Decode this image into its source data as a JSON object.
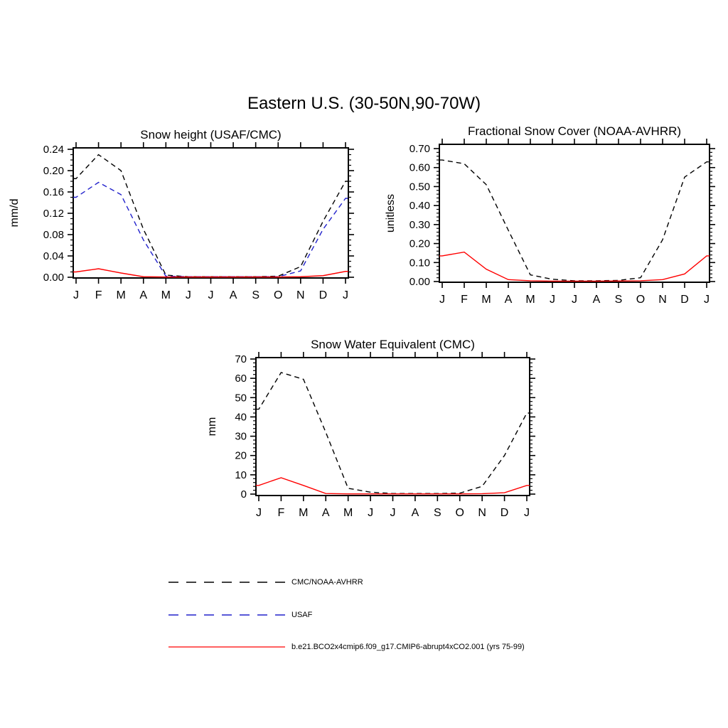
{
  "page": {
    "title": "Eastern U.S. (30-50N,90-70W)"
  },
  "colors": {
    "obs_black": "#000000",
    "usaf_blue": "#2222cc",
    "model_red": "#ff0000"
  },
  "chart_data": [
    {
      "type": "line",
      "title": "Snow height (USAF/CMC)",
      "ylabel": "mm/d",
      "x_labels": [
        "J",
        "F",
        "M",
        "A",
        "M",
        "J",
        "J",
        "A",
        "S",
        "O",
        "N",
        "D",
        "J"
      ],
      "ylim": [
        0,
        0.24
      ],
      "ytick_step": 0.04,
      "yminor_step": 0.01,
      "ytick_decimals": 2,
      "grid": false,
      "series": [
        {
          "name": "CMC/NOAA-AVHRR",
          "color": "#000000",
          "dash": "7,5",
          "values": [
            0.185,
            0.23,
            0.2,
            0.09,
            0.004,
            0.001,
            0.001,
            0.001,
            0.001,
            0.002,
            0.02,
            0.105,
            0.18
          ]
        },
        {
          "name": "USAF",
          "color": "#2222cc",
          "dash": "7,5",
          "values": [
            0.15,
            0.178,
            0.155,
            0.07,
            0.002,
            0.001,
            0.001,
            0.001,
            0.001,
            0.001,
            0.012,
            0.09,
            0.148
          ]
        },
        {
          "name": "b.e21.BCO2x4cmip6.f09_g17.CMIP6-abrupt4xCO2.001 (yrs 75-99)",
          "color": "#ff0000",
          "dash": "",
          "values": [
            0.01,
            0.016,
            0.008,
            0.001,
            0.0005,
            0.0005,
            0.0005,
            0.0005,
            0.0005,
            0.0005,
            0.001,
            0.003,
            0.011
          ]
        }
      ]
    },
    {
      "type": "line",
      "title": "Fractional Snow Cover (NOAA-AVHRR)",
      "ylabel": "unitless",
      "x_labels": [
        "J",
        "F",
        "M",
        "A",
        "M",
        "J",
        "J",
        "A",
        "S",
        "O",
        "N",
        "D",
        "J"
      ],
      "ylim": [
        0,
        0.7
      ],
      "ytick_step": 0.1,
      "yminor_step": 0.02,
      "ytick_decimals": 2,
      "grid": false,
      "series": [
        {
          "name": "CMC/NOAA-AVHRR",
          "color": "#000000",
          "dash": "7,5",
          "values": [
            0.64,
            0.62,
            0.51,
            0.27,
            0.035,
            0.012,
            0.004,
            0.004,
            0.006,
            0.02,
            0.22,
            0.55,
            0.63
          ]
        },
        {
          "name": "b.e21.BCO2x4cmip6.f09_g17.CMIP6-abrupt4xCO2.001 (yrs 75-99)",
          "color": "#ff0000",
          "dash": "",
          "values": [
            0.135,
            0.155,
            0.065,
            0.01,
            0.004,
            0.002,
            0.002,
            0.002,
            0.003,
            0.004,
            0.01,
            0.04,
            0.135
          ]
        }
      ]
    },
    {
      "type": "line",
      "title": "Snow Water Equivalent (CMC)",
      "ylabel": "mm",
      "x_labels": [
        "J",
        "F",
        "M",
        "A",
        "M",
        "J",
        "J",
        "A",
        "S",
        "O",
        "N",
        "D",
        "J"
      ],
      "ylim": [
        0,
        70
      ],
      "ytick_step": 10,
      "yminor_step": 2,
      "ytick_decimals": 0,
      "grid": false,
      "series": [
        {
          "name": "CMC/NOAA-AVHRR",
          "color": "#000000",
          "dash": "7,5",
          "values": [
            44,
            63,
            59.5,
            32,
            3,
            1,
            0.3,
            0.3,
            0.3,
            0.5,
            4,
            20,
            42
          ]
        },
        {
          "name": "b.e21.BCO2x4cmip6.f09_g17.CMIP6-abrupt4xCO2.001 (yrs 75-99)",
          "color": "#ff0000",
          "dash": "",
          "values": [
            4.5,
            8.5,
            4.5,
            0.3,
            0.1,
            0.1,
            0.1,
            0.1,
            0.1,
            0.1,
            0.2,
            0.7,
            4.5
          ]
        }
      ]
    }
  ],
  "legend": {
    "items": [
      {
        "label": "CMC/NOAA-AVHRR",
        "color": "#000000",
        "dash": "14,11"
      },
      {
        "label": "USAF",
        "color": "#2222cc",
        "dash": "14,11"
      },
      {
        "label": "b.e21.BCO2x4cmip6.f09_g17.CMIP6-abrupt4xCO2.001 (yrs 75-99)",
        "color": "#ff0000",
        "dash": ""
      }
    ]
  }
}
